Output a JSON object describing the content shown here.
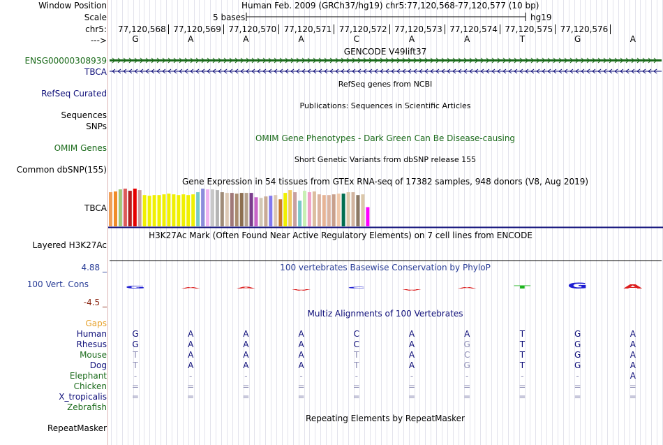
{
  "position": {
    "label": "Window Position",
    "text": "Human Feb. 2009 (GRCh37/hg19)   chr5:77,120,568-77,120,577 (10 bp)"
  },
  "scale": {
    "label": "Scale",
    "bases": "5 bases",
    "assembly": "hg19"
  },
  "ruler": {
    "chrom_label": "chr5:",
    "arrow_label": "--->",
    "positions": [
      "77,120,568",
      "77,120,569",
      "77,120,570",
      "77,120,571",
      "77,120,572",
      "77,120,573",
      "77,120,574",
      "77,120,575",
      "77,120,576"
    ],
    "bases": [
      "G",
      "A",
      "A",
      "A",
      "C",
      "A",
      "A",
      "T",
      "G",
      "A"
    ]
  },
  "tracks": {
    "gencode": {
      "title": "GENCODE V49lift37",
      "gene_id": "ENSG00000308939",
      "gene_name": "TBCA",
      "color_gene_id": "#1a6a1a",
      "color_gene_name": "#0c0c78"
    },
    "refseq": {
      "label": "RefSeq Curated",
      "title": "RefSeq genes from NCBI"
    },
    "pubs": {
      "label": "Sequences",
      "title": "Publications: Sequences in Scientific Articles"
    },
    "snps_label": "SNPs",
    "omim": {
      "label": "OMIM Genes",
      "title": "OMIM Gene Phenotypes - Dark Green Can Be Disease-causing"
    },
    "dbsnp": {
      "label": "Common dbSNP(155)",
      "title": "Short Genetic Variants from dbSNP release 155"
    },
    "gtex": {
      "label": "TBCA",
      "title": "Gene Expression in 54 tissues from GTEx RNA-seq of 17382 samples, 948 donors (V8, Aug 2019)",
      "values": [
        48,
        49,
        52,
        53,
        50,
        53,
        51,
        44,
        43,
        44,
        44,
        45,
        46,
        45,
        44,
        45,
        44,
        45,
        48,
        53,
        52,
        52,
        51,
        48,
        47,
        47,
        46,
        47,
        47,
        47,
        41,
        40,
        42,
        43,
        44,
        38,
        47,
        51,
        48,
        36,
        50,
        48,
        49,
        45,
        44,
        44,
        45,
        46,
        46,
        48,
        48,
        44,
        45,
        27
      ],
      "colors": [
        "#f0a05a",
        "#f08c28",
        "#a0c878",
        "#dc5a5a",
        "#b41e1e",
        "#e60000",
        "#c8a0a0",
        "#f0f000",
        "#f0f000",
        "#f0f000",
        "#f0f000",
        "#f0f000",
        "#f0f000",
        "#f0f000",
        "#f0f000",
        "#f0f000",
        "#f0f000",
        "#f0f000",
        "#78c8c8",
        "#8c8cdc",
        "#f0b4f0",
        "#c8c8c8",
        "#b4b4b4",
        "#a08c78",
        "#dcc8b4",
        "#a07878",
        "#aa8c6e",
        "#8c6e50",
        "#b4a08c",
        "#7a3c8c",
        "#c864c8",
        "#d2c8b4",
        "#c8aa96",
        "#8278f0",
        "#dcc8b4",
        "#c87828",
        "#f0f000",
        "#f0c864",
        "#c8a0a0",
        "#78c8c8",
        "#c8f0b4",
        "#f0a0c8",
        "#dcbea0",
        "#dcb4a0",
        "#e6b496",
        "#dcb4a0",
        "#c8a08c",
        "#f0c8aa",
        "#006e50",
        "#dcc8aa",
        "#d2b4a0",
        "#8c7864",
        "#dcc8aa",
        "#ff00ff"
      ]
    },
    "h3k27ac": {
      "label": "Layered H3K27Ac",
      "title": "H3K27Ac Mark (Often Found Near Active Regulatory Elements) on 7 cell lines from ENCODE"
    },
    "phylop": {
      "label": "100 Vert. Cons",
      "title": "100 vertebrates Basewise Conservation by PhyloP",
      "max": "4.88 _",
      "min": "-4.5 _",
      "scores": [
        1.2,
        0.4,
        0.8,
        -0.4,
        0.8,
        -0.4,
        0.3,
        1.4,
        2.6,
        1.8
      ]
    },
    "multiz": {
      "title": "Multiz Alignments of 100 Vertebrates",
      "gaps_label": "Gaps",
      "species": [
        {
          "name": "Human",
          "bases": [
            "G",
            "A",
            "A",
            "A",
            "C",
            "A",
            "A",
            "T",
            "G",
            "A"
          ]
        },
        {
          "name": "Rhesus",
          "bases": [
            "G",
            "A",
            "A",
            "A",
            "C",
            "A",
            "G",
            "T",
            "G",
            "A"
          ]
        },
        {
          "name": "Mouse",
          "bases": [
            "T",
            "A",
            "A",
            "A",
            "T",
            "A",
            "C",
            "T",
            "G",
            "A"
          ]
        },
        {
          "name": "Dog",
          "bases": [
            "T",
            "A",
            "A",
            "A",
            "T",
            "A",
            "G",
            "T",
            "G",
            "A"
          ]
        },
        {
          "name": "Elephant",
          "bases": [
            "-",
            "-",
            "-",
            "-",
            "-",
            "-",
            "-",
            "-",
            "-",
            "A"
          ]
        },
        {
          "name": "Chicken",
          "bases": [
            "=",
            "=",
            "=",
            "=",
            "=",
            "=",
            "=",
            "=",
            "=",
            "="
          ]
        },
        {
          "name": "X_tropicalis",
          "bases": [
            "=",
            "=",
            "=",
            "=",
            "=",
            "=",
            "=",
            "=",
            "=",
            "="
          ]
        },
        {
          "name": "Zebrafish",
          "bases": [
            "",
            "",
            "",
            "",
            "",
            "",
            "",
            "",
            "",
            ""
          ]
        }
      ]
    },
    "repeatmasker": {
      "label": "RepeatMasker",
      "title": "Repeating Elements by RepeatMasker"
    }
  }
}
